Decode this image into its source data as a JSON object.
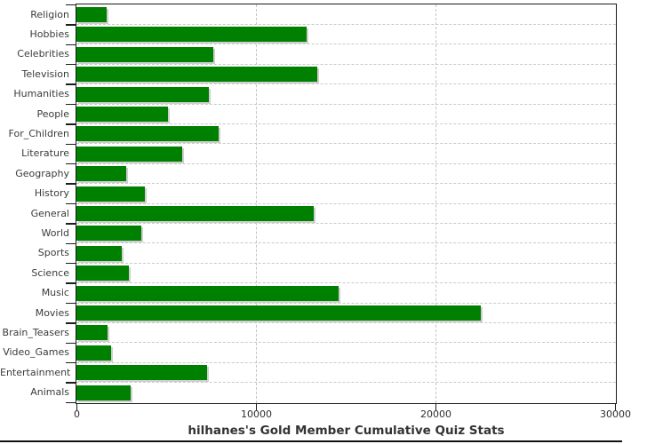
{
  "chart_data": {
    "type": "bar",
    "orientation": "horizontal",
    "title": "hilhanes's Gold Member Cumulative Quiz Stats",
    "categories": [
      "Religion",
      "Hobbies",
      "Celebrities",
      "Television",
      "Humanities",
      "People",
      "For_Children",
      "Literature",
      "Geography",
      "History",
      "General",
      "World",
      "Sports",
      "Science",
      "Music",
      "Movies",
      "Brain_Teasers",
      "Video_Games",
      "Entertainment",
      "Animals"
    ],
    "values": [
      1700,
      12800,
      7600,
      13400,
      7400,
      5100,
      7900,
      5900,
      2750,
      3800,
      13200,
      3600,
      2500,
      2900,
      14600,
      22500,
      1750,
      1950,
      7300,
      3000
    ],
    "xlabel": "",
    "ylabel": "",
    "xlim": [
      0,
      30000
    ],
    "x_ticks": [
      0,
      10000,
      20000,
      30000
    ],
    "x_tick_labels": [
      "0",
      "10000",
      "20000",
      "30000"
    ],
    "grid": "dashed vertical lines at interior x ticks; dashed horizontal lines at category boundaries",
    "legend": "none",
    "colors": {
      "bar_fill": "#008000",
      "bar_shadow": "#cfcfcf",
      "grid_line": "#c9c9c9",
      "axis_border": "#1b1b1b",
      "category_label": "#3b3b3b",
      "tick_label": "#2e2e2e",
      "title_text": "#333333",
      "background": "#ffffff"
    }
  }
}
